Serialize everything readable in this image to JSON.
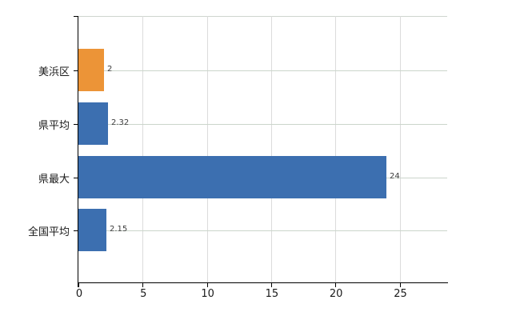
{
  "chart_data": {
    "type": "bar",
    "orientation": "horizontal",
    "title": "",
    "xlabel": "",
    "ylabel": "",
    "categories": [
      "美浜区",
      "県平均",
      "県最大",
      "全国平均"
    ],
    "values": [
      2,
      2.32,
      24,
      2.15
    ],
    "value_labels": [
      "2",
      "2.32",
      "24",
      "2.15"
    ],
    "bar_colors": [
      "#EC9437",
      "#3C6FB0",
      "#3C6FB0",
      "#3C6FB0"
    ],
    "x_ticks": [
      0,
      5,
      10,
      15,
      20,
      25
    ],
    "x_tick_labels": [
      "0",
      "5",
      "10",
      "15",
      "20",
      "25"
    ],
    "xlim": [
      0,
      28.7
    ],
    "grid": true,
    "legend": "none",
    "colors": {
      "background": "#FFFFFF",
      "axis": "#000000",
      "horizontal_gridline": "#CBD5CB",
      "vertical_gridline": "#DBDBDB",
      "plot_top_border": "#CFD5CF",
      "text": "#1A1A1A",
      "value_label_text": "#3C3C3C"
    }
  }
}
